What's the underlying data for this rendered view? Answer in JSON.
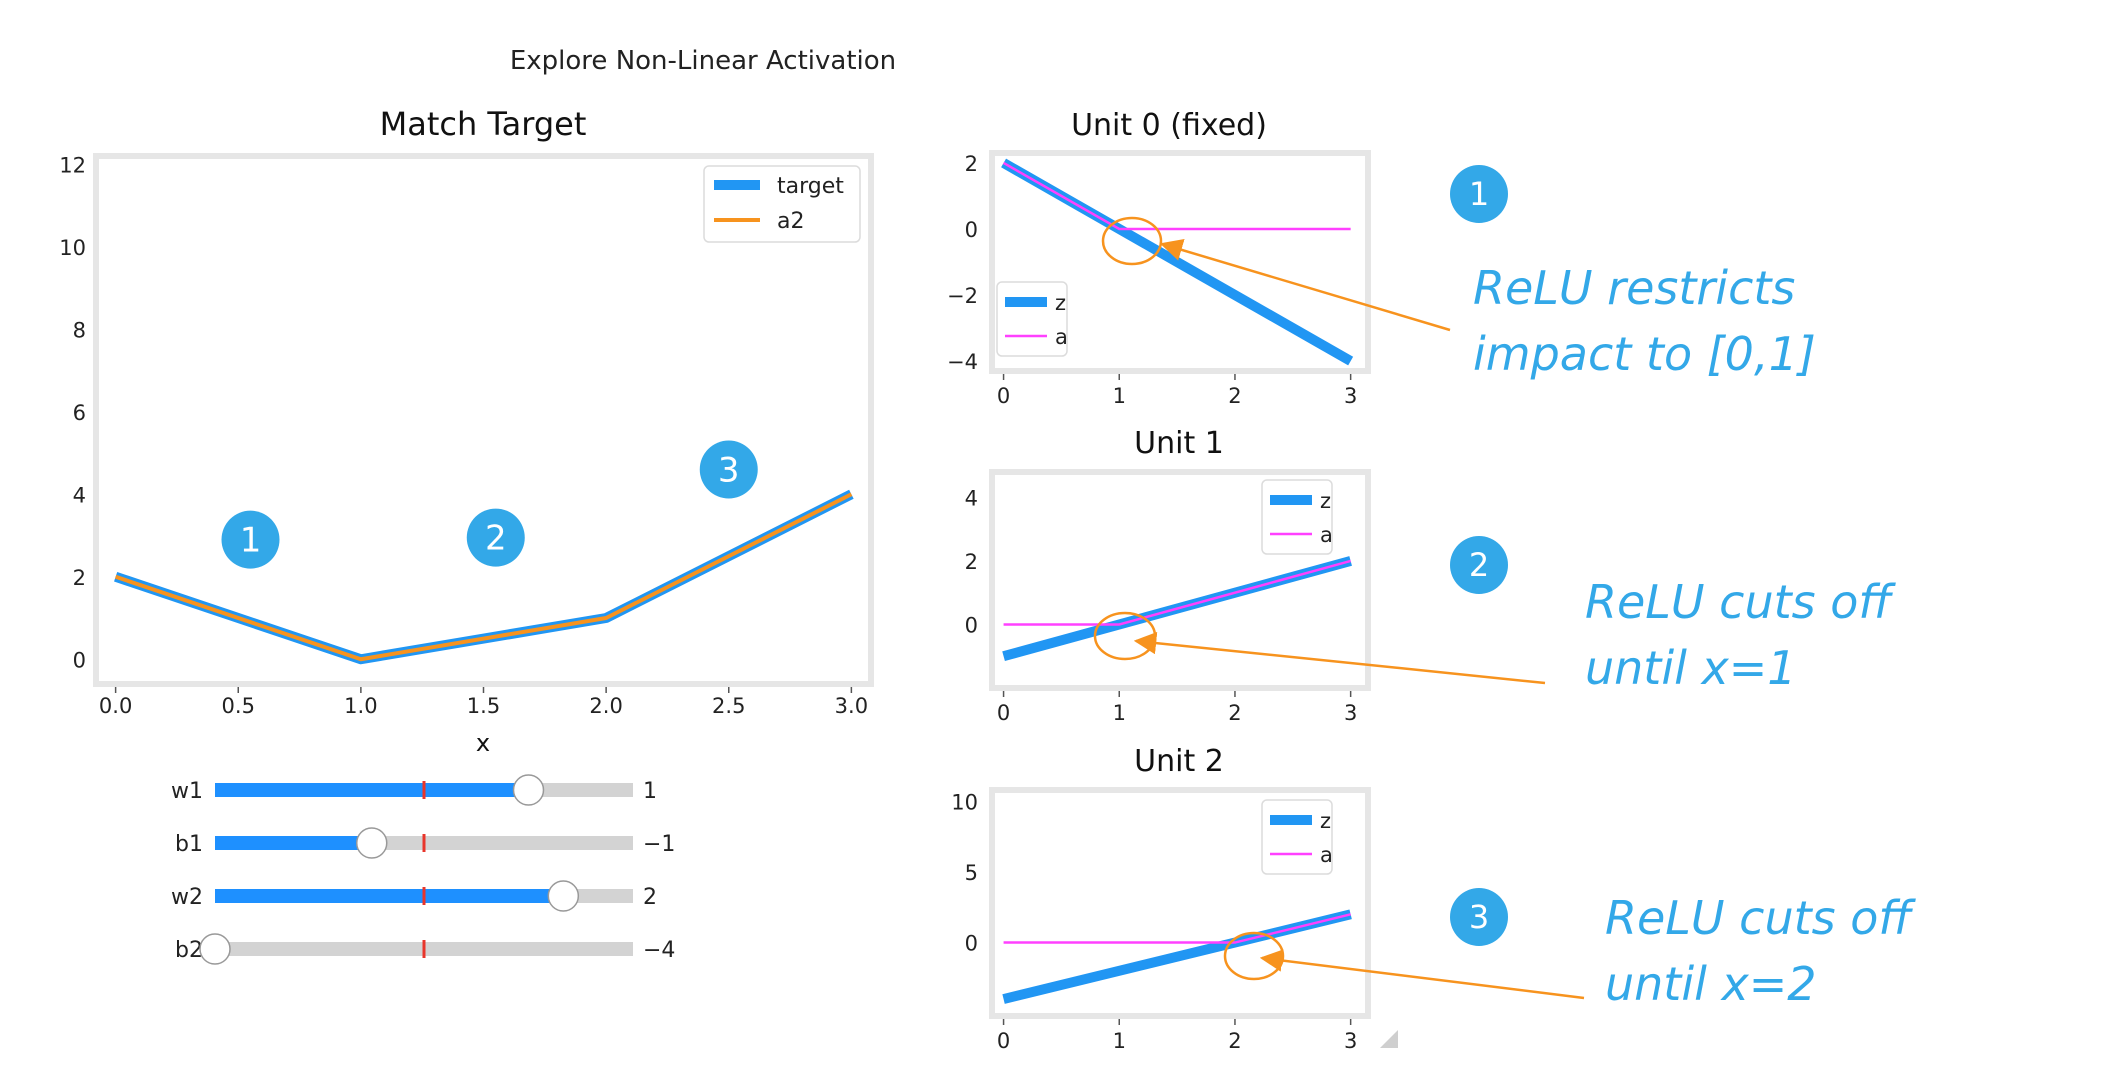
{
  "figure_title": "Explore Non-Linear Activation",
  "colors": {
    "blue": "#2196f3",
    "orange": "#f7931e",
    "magenta": "#ff40ff",
    "annotation": "#33a8e8",
    "slider_track": "#d3d3d3",
    "slider_fill": "#1e90ff",
    "tick_marker": "#e8352b",
    "panel_bg": "#efefef"
  },
  "chart_data": [
    {
      "type": "line",
      "title": "Match Target",
      "xlabel": "x",
      "ylabel": "",
      "xlim": [
        -0.08,
        3.08
      ],
      "ylim": [
        -0.6,
        12.2
      ],
      "xticks": [
        "0.0",
        "0.5",
        "1.0",
        "1.5",
        "2.0",
        "2.5",
        "3.0"
      ],
      "yticks": [
        "0",
        "2",
        "4",
        "6",
        "8",
        "10",
        "12"
      ],
      "grid": false,
      "legend": "top-right",
      "series": [
        {
          "name": "target",
          "x": [
            0,
            1,
            2,
            3
          ],
          "y": [
            2,
            0,
            1,
            4
          ]
        },
        {
          "name": "a2",
          "x": [
            0,
            1,
            2,
            3
          ],
          "y": [
            2,
            0,
            1,
            4
          ]
        }
      ],
      "markers": [
        {
          "label": "1",
          "x": 0.55,
          "y": 2.9
        },
        {
          "label": "2",
          "x": 1.55,
          "y": 2.95
        },
        {
          "label": "3",
          "x": 2.5,
          "y": 4.6
        }
      ]
    },
    {
      "type": "line",
      "title": "Unit 0 (fixed)",
      "xlim": [
        -0.1,
        3.15
      ],
      "ylim": [
        -4.3,
        2.3
      ],
      "xticks": [
        "0",
        "1",
        "2",
        "3"
      ],
      "yticks": [
        "2",
        "0",
        "−2",
        "−4"
      ],
      "legend": "bottom-left",
      "series": [
        {
          "name": "z",
          "x": [
            0,
            3
          ],
          "y": [
            2,
            -4
          ]
        },
        {
          "name": "a",
          "x": [
            0,
            1,
            3
          ],
          "y": [
            2,
            0,
            0
          ]
        }
      ]
    },
    {
      "type": "line",
      "title": "Unit 1",
      "xlim": [
        -0.1,
        3.15
      ],
      "ylim": [
        -2.0,
        4.8
      ],
      "xticks": [
        "0",
        "1",
        "2",
        "3"
      ],
      "yticks": [
        "4",
        "2",
        "0"
      ],
      "legend": "top-right",
      "series": [
        {
          "name": "z",
          "x": [
            0,
            3
          ],
          "y": [
            -1,
            2
          ]
        },
        {
          "name": "a",
          "x": [
            0,
            1,
            3
          ],
          "y": [
            0,
            0,
            2
          ]
        }
      ]
    },
    {
      "type": "line",
      "title": "Unit 2",
      "xlim": [
        -0.1,
        3.15
      ],
      "ylim": [
        -5.2,
        10.8
      ],
      "xticks": [
        "0",
        "1",
        "2",
        "3"
      ],
      "yticks": [
        "10",
        "5",
        "0"
      ],
      "legend": "top-right",
      "series": [
        {
          "name": "z",
          "x": [
            0,
            3
          ],
          "y": [
            -4,
            2
          ]
        },
        {
          "name": "a",
          "x": [
            0,
            2,
            3
          ],
          "y": [
            0,
            0,
            2
          ]
        }
      ]
    }
  ],
  "sliders": [
    {
      "label": "w1",
      "value": 1,
      "value_text": "1",
      "min": -2,
      "max": 2
    },
    {
      "label": "b1",
      "value": -1,
      "value_text": "−1",
      "min": -4,
      "max": 4
    },
    {
      "label": "w2",
      "value": 2,
      "value_text": "2",
      "min": -3,
      "max": 3
    },
    {
      "label": "b2",
      "value": -4,
      "value_text": "−4",
      "min": -4,
      "max": 4
    }
  ],
  "annotations": [
    {
      "badge": "1",
      "text_lines": [
        "ReLU restricts",
        "impact to [0,1]"
      ]
    },
    {
      "badge": "2",
      "text_lines": [
        "ReLU cuts off",
        "until x=1"
      ]
    },
    {
      "badge": "3",
      "text_lines": [
        "ReLU cuts off",
        "until x=2"
      ]
    }
  ]
}
